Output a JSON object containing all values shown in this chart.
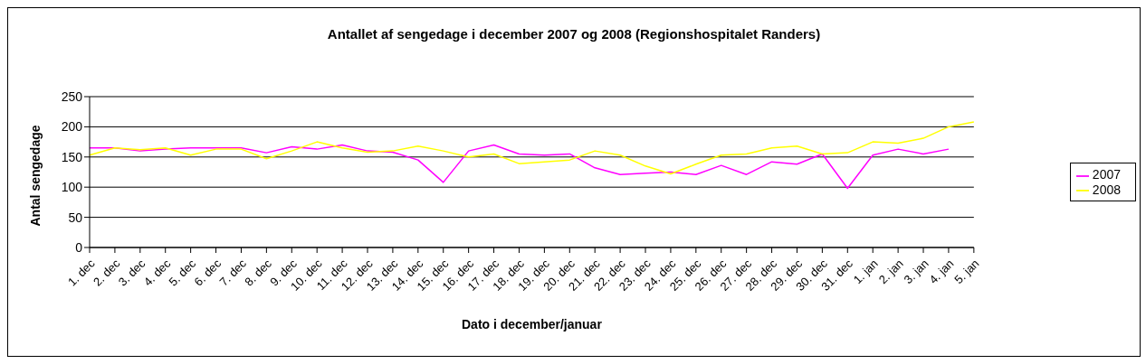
{
  "chart_data": {
    "type": "line",
    "title": "Antallet af sengedage i december 2007 og 2008 (Regionshospitalet Randers)",
    "xlabel": "Dato i december/januar",
    "ylabel": "Antal sengedage",
    "categories": [
      "1. dec",
      "2. dec",
      "3. dec",
      "4. dec",
      "5. dec",
      "6. dec",
      "7. dec",
      "8. dec",
      "9. dec",
      "10. dec",
      "11. dec",
      "12. dec",
      "13. dec",
      "14. dec",
      "15. dec",
      "16. dec",
      "17. dec",
      "18. dec",
      "19. dec",
      "20. dec",
      "21. dec",
      "22. dec",
      "23. dec",
      "24. dec",
      "25. dec",
      "26. dec",
      "27. dec",
      "28. dec",
      "29. dec",
      "30. dec",
      "31. dec",
      "1. jan",
      "2. jan",
      "3. jan",
      "4. jan",
      "5. jan"
    ],
    "series": [
      {
        "name": "2007",
        "color": "#ff00ff",
        "values": [
          165,
          165,
          160,
          163,
          165,
          165,
          165,
          157,
          167,
          163,
          170,
          160,
          158,
          145,
          108,
          160,
          170,
          155,
          153,
          155,
          132,
          121,
          123,
          125,
          121,
          136,
          121,
          142,
          138,
          155,
          98,
          153,
          163,
          155,
          163,
          null
        ]
      },
      {
        "name": "2008",
        "color": "#ffff00",
        "values": [
          153,
          165,
          162,
          165,
          153,
          163,
          163,
          147,
          160,
          175,
          165,
          158,
          160,
          168,
          160,
          150,
          155,
          139,
          142,
          145,
          160,
          153,
          135,
          122,
          138,
          153,
          155,
          165,
          168,
          155,
          157,
          175,
          173,
          181,
          200,
          208
        ]
      }
    ],
    "ylim": [
      0,
      250
    ],
    "yticks": [
      0,
      50,
      100,
      150,
      200,
      250
    ],
    "grid": "y",
    "legend": "right",
    "marker": "none",
    "line_style": "solid"
  }
}
